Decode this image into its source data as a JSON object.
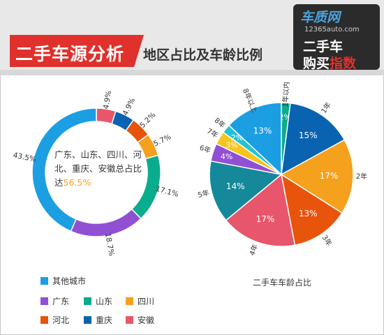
{
  "header": {
    "title": "二手车源分析",
    "subtitle": "地区占比及车龄比例"
  },
  "logo": {
    "brand": "车质网",
    "url": "12365auto.com",
    "line1": "二手车",
    "line2_a": "购买",
    "line2_b": "指数"
  },
  "donut_center": {
    "text": "广东、山东、四川、河北、重庆、安徽总占比达",
    "highlight": "56.5%"
  },
  "colors": {
    "其他城市": "#1b9fe2",
    "广东": "#9150d4",
    "山东": "#0aac8e",
    "四川": "#f5a11d",
    "河北": "#e8540c",
    "重庆": "#0a63b0",
    "安徽": "#e8566b"
  },
  "chart_data": [
    {
      "type": "pie",
      "variant": "donut",
      "categories": [
        "安徽",
        "重庆",
        "河北",
        "四川",
        "山东",
        "广东",
        "其他城市"
      ],
      "values": [
        4.9,
        4.9,
        5.2,
        5.7,
        17.1,
        18.7,
        43.5
      ],
      "value_labels": [
        "4.9%",
        "4.9%",
        "5.2%",
        "5.7%",
        "17.1%",
        "18.7%",
        "43.5%"
      ],
      "legend": [
        "其他城市",
        "广东",
        "山东",
        "四川",
        "河北",
        "重庆",
        "安徽"
      ],
      "legend_position": "bottom-left"
    },
    {
      "type": "pie",
      "categories": [
        "1年以内",
        "1年",
        "2年",
        "3年",
        "4年",
        "5年",
        "6年",
        "7年",
        "8年",
        "8年以上"
      ],
      "values": [
        2,
        15,
        17,
        13,
        17,
        14,
        4,
        3,
        2,
        13
      ],
      "value_labels": [
        "2%",
        "15%",
        "17%",
        "13%",
        "17%",
        "14%",
        "4%",
        "3%",
        "2%",
        "13%"
      ],
      "colors": [
        "#0aac8e",
        "#0a63b0",
        "#f5a11d",
        "#e8540c",
        "#e8566b",
        "#15899a",
        "#9150d4",
        "#f5c51d",
        "#22c2d6",
        "#1b9fe2"
      ],
      "caption": "二手车车龄占比"
    }
  ]
}
